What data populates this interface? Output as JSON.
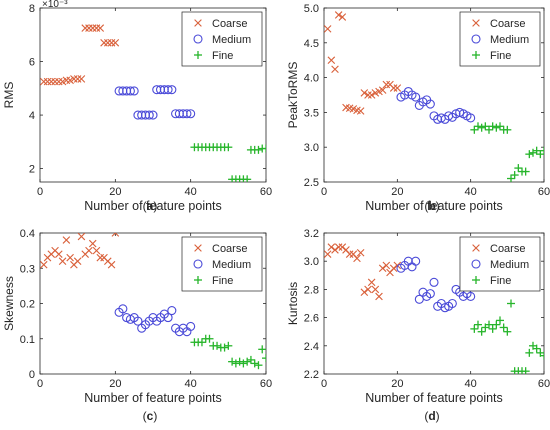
{
  "figure": {
    "series_styles": [
      {
        "name": "Coarse",
        "marker": "x",
        "color": "#d9603a"
      },
      {
        "name": "Medium",
        "marker": "o",
        "color": "#4a4ad8"
      },
      {
        "name": "Fine",
        "marker": "+",
        "color": "#27b52b"
      }
    ]
  },
  "chart_data": [
    {
      "type": "scatter",
      "panel_label": "(a)",
      "ylabel": "RMS",
      "xlabel": "Number of feature points",
      "y_exponent": "×10⁻³",
      "xlim": [
        0,
        60
      ],
      "ylim": [
        1.5,
        8
      ],
      "xticks": [
        0,
        20,
        40,
        60
      ],
      "yticks": [
        2,
        4,
        6,
        8
      ],
      "grid": false,
      "legend": "top-right",
      "series": [
        {
          "name": "Coarse",
          "x": [
            1,
            2,
            3,
            4,
            5,
            6,
            7,
            8,
            9,
            10,
            11,
            12,
            13,
            14,
            15,
            16,
            17,
            18,
            19,
            20
          ],
          "y": [
            5.25,
            5.25,
            5.25,
            5.25,
            5.25,
            5.25,
            5.3,
            5.3,
            5.35,
            5.35,
            5.35,
            7.25,
            7.25,
            7.25,
            7.25,
            7.25,
            6.7,
            6.7,
            6.7,
            6.7
          ]
        },
        {
          "name": "Medium",
          "x": [
            21,
            22,
            23,
            24,
            25,
            26,
            27,
            28,
            29,
            30,
            31,
            32,
            33,
            34,
            35,
            36,
            37,
            38,
            39,
            40
          ],
          "y": [
            4.9,
            4.9,
            4.9,
            4.9,
            4.9,
            4.0,
            4.0,
            4.0,
            4.0,
            4.0,
            4.95,
            4.95,
            4.95,
            4.95,
            4.95,
            4.05,
            4.05,
            4.05,
            4.05,
            4.05
          ]
        },
        {
          "name": "Fine",
          "x": [
            41,
            42,
            43,
            44,
            45,
            46,
            47,
            48,
            49,
            50,
            51,
            52,
            53,
            54,
            55,
            56,
            57,
            58,
            59,
            60
          ],
          "y": [
            2.8,
            2.8,
            2.8,
            2.8,
            2.8,
            2.8,
            2.8,
            2.8,
            2.8,
            2.8,
            1.6,
            1.6,
            1.6,
            1.6,
            1.6,
            2.7,
            2.7,
            2.7,
            2.75,
            2.75
          ]
        }
      ]
    },
    {
      "type": "scatter",
      "panel_label": "(b)",
      "ylabel": "PeakToRMS",
      "xlabel": "Number of feature points",
      "xlim": [
        0,
        60
      ],
      "ylim": [
        2.5,
        5
      ],
      "xticks": [
        0,
        20,
        40,
        60
      ],
      "yticks": [
        2.5,
        3,
        3.5,
        4,
        4.5,
        5
      ],
      "grid": false,
      "legend": "top-right",
      "series": [
        {
          "name": "Coarse",
          "x": [
            1,
            2,
            3,
            4,
            5,
            6,
            7,
            8,
            9,
            10,
            11,
            12,
            13,
            14,
            15,
            16,
            17,
            18,
            19,
            20
          ],
          "y": [
            4.7,
            4.25,
            4.12,
            4.9,
            4.87,
            3.57,
            3.56,
            3.55,
            3.53,
            3.52,
            3.78,
            3.75,
            3.75,
            3.78,
            3.8,
            3.82,
            3.9,
            3.9,
            3.85,
            3.85
          ]
        },
        {
          "name": "Medium",
          "x": [
            21,
            22,
            23,
            24,
            25,
            26,
            27,
            28,
            29,
            30,
            31,
            32,
            33,
            34,
            35,
            36,
            37,
            38,
            39,
            40
          ],
          "y": [
            3.72,
            3.75,
            3.8,
            3.75,
            3.72,
            3.6,
            3.65,
            3.68,
            3.62,
            3.45,
            3.4,
            3.42,
            3.4,
            3.45,
            3.43,
            3.48,
            3.5,
            3.48,
            3.45,
            3.42
          ]
        },
        {
          "name": "Fine",
          "x": [
            41,
            42,
            43,
            44,
            45,
            46,
            47,
            48,
            49,
            50,
            51,
            52,
            53,
            54,
            55,
            56,
            57,
            58,
            59,
            60
          ],
          "y": [
            3.25,
            3.3,
            3.28,
            3.3,
            3.25,
            3.3,
            3.28,
            3.3,
            3.25,
            3.25,
            2.55,
            2.6,
            2.7,
            2.65,
            2.65,
            2.9,
            2.92,
            2.95,
            2.9,
            2.95
          ]
        }
      ]
    },
    {
      "type": "scatter",
      "panel_label": "(c)",
      "ylabel": "Skewness",
      "xlabel": "Number of feature points",
      "xlim": [
        0,
        60
      ],
      "ylim": [
        0,
        0.4
      ],
      "xticks": [
        0,
        20,
        40,
        60
      ],
      "yticks": [
        0,
        0.1,
        0.2,
        0.3,
        0.4
      ],
      "grid": false,
      "legend": "top-right",
      "series": [
        {
          "name": "Coarse",
          "x": [
            1,
            2,
            3,
            4,
            5,
            6,
            7,
            8,
            9,
            10,
            11,
            12,
            13,
            14,
            15,
            16,
            17,
            18,
            19,
            20
          ],
          "y": [
            0.31,
            0.33,
            0.34,
            0.35,
            0.34,
            0.32,
            0.38,
            0.33,
            0.31,
            0.32,
            0.39,
            0.34,
            0.35,
            0.37,
            0.35,
            0.33,
            0.33,
            0.32,
            0.31,
            0.4
          ]
        },
        {
          "name": "Medium",
          "x": [
            21,
            22,
            23,
            24,
            25,
            26,
            27,
            28,
            29,
            30,
            31,
            32,
            33,
            34,
            35,
            36,
            37,
            38,
            39,
            40
          ],
          "y": [
            0.175,
            0.185,
            0.16,
            0.155,
            0.16,
            0.15,
            0.13,
            0.14,
            0.15,
            0.16,
            0.15,
            0.16,
            0.17,
            0.16,
            0.18,
            0.13,
            0.12,
            0.13,
            0.12,
            0.135
          ]
        },
        {
          "name": "Fine",
          "x": [
            41,
            42,
            43,
            44,
            45,
            46,
            47,
            48,
            49,
            50,
            51,
            52,
            53,
            54,
            55,
            56,
            57,
            58,
            59,
            60
          ],
          "y": [
            0.09,
            0.09,
            0.09,
            0.1,
            0.1,
            0.08,
            0.08,
            0.075,
            0.075,
            0.08,
            0.035,
            0.03,
            0.035,
            0.03,
            0.035,
            0.04,
            0.03,
            0.025,
            0.07,
            0.045
          ]
        }
      ]
    },
    {
      "type": "scatter",
      "panel_label": "(d)",
      "ylabel": "Kurtosis",
      "xlabel": "Number of feature points",
      "xlim": [
        0,
        60
      ],
      "ylim": [
        2.2,
        3.2
      ],
      "xticks": [
        0,
        20,
        40,
        60
      ],
      "yticks": [
        2.2,
        2.4,
        2.6,
        2.8,
        3.0,
        3.2
      ],
      "grid": false,
      "legend": "top-right",
      "series": [
        {
          "name": "Coarse",
          "x": [
            1,
            2,
            3,
            4,
            5,
            6,
            7,
            8,
            9,
            10,
            11,
            12,
            13,
            14,
            15,
            16,
            17,
            18,
            19,
            20
          ],
          "y": [
            3.05,
            3.1,
            3.08,
            3.1,
            3.1,
            3.08,
            3.05,
            3.05,
            3.02,
            3.06,
            2.78,
            2.8,
            2.85,
            2.8,
            2.75,
            2.95,
            2.97,
            2.92,
            2.95,
            2.97
          ]
        },
        {
          "name": "Medium",
          "x": [
            21,
            22,
            23,
            24,
            25,
            26,
            27,
            28,
            29,
            30,
            31,
            32,
            33,
            34,
            35,
            36,
            37,
            38,
            39,
            40
          ],
          "y": [
            2.95,
            2.97,
            3.0,
            2.96,
            3.0,
            2.73,
            2.78,
            2.75,
            2.77,
            2.85,
            2.68,
            2.7,
            2.67,
            2.68,
            2.7,
            2.8,
            2.78,
            2.75,
            2.77,
            2.75
          ]
        },
        {
          "name": "Fine",
          "x": [
            41,
            42,
            43,
            44,
            45,
            46,
            47,
            48,
            49,
            50,
            51,
            52,
            53,
            54,
            55,
            56,
            57,
            58,
            59,
            60
          ],
          "y": [
            2.52,
            2.55,
            2.5,
            2.53,
            2.55,
            2.52,
            2.55,
            2.58,
            2.53,
            2.5,
            2.7,
            2.22,
            2.22,
            2.22,
            2.22,
            2.35,
            2.4,
            2.38,
            2.35,
            2.33
          ]
        }
      ]
    }
  ]
}
